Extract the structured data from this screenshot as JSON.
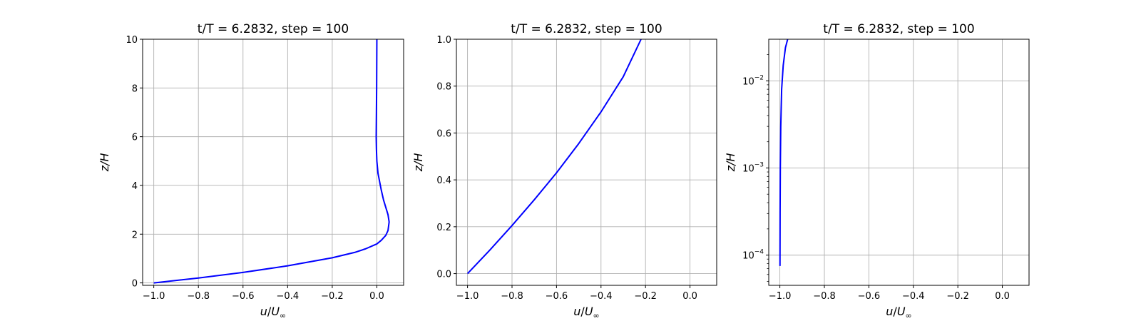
{
  "chart_data": [
    {
      "type": "line",
      "title": "t/T = 6.2832, step = 100",
      "xlabel": "u/U∞",
      "ylabel": "z/H",
      "xlim": [
        -1.05,
        0.12
      ],
      "ylim": [
        -0.1,
        10
      ],
      "yscale": "linear",
      "xticks": [
        -1.0,
        -0.8,
        -0.6,
        -0.4,
        -0.2,
        0.0
      ],
      "xtick_labels": [
        "−1.0",
        "−0.8",
        "−0.6",
        "−0.4",
        "−0.2",
        "0.0"
      ],
      "yticks": [
        0,
        2,
        4,
        6,
        8,
        10
      ],
      "ytick_labels": [
        "0",
        "2",
        "4",
        "6",
        "8",
        "10"
      ],
      "grid": true,
      "legend": "none",
      "series": [
        {
          "color": "#0000ff",
          "x": [
            -1.0,
            -0.8,
            -0.6,
            -0.4,
            -0.2,
            -0.1,
            -0.05,
            0.0,
            0.02,
            0.04,
            0.05,
            0.055,
            0.05,
            0.04,
            0.03,
            0.02,
            0.005,
            0.0,
            -0.002,
            -0.003,
            -0.002,
            -0.001,
            0.0
          ],
          "y": [
            0.0,
            0.2,
            0.43,
            0.7,
            1.03,
            1.25,
            1.4,
            1.6,
            1.75,
            1.95,
            2.15,
            2.5,
            2.8,
            3.1,
            3.4,
            3.8,
            4.5,
            5.0,
            5.5,
            6.0,
            7.0,
            8.0,
            10.0
          ]
        }
      ]
    },
    {
      "type": "line",
      "title": "t/T = 6.2832, step = 100",
      "xlabel": "u/U∞",
      "ylabel": "z/H",
      "xlim": [
        -1.05,
        0.12
      ],
      "ylim": [
        -0.05,
        1.0
      ],
      "yscale": "linear",
      "xticks": [
        -1.0,
        -0.8,
        -0.6,
        -0.4,
        -0.2,
        0.0
      ],
      "xtick_labels": [
        "−1.0",
        "−0.8",
        "−0.6",
        "−0.4",
        "−0.2",
        "0.0"
      ],
      "yticks": [
        0.0,
        0.2,
        0.4,
        0.6,
        0.8,
        1.0
      ],
      "ytick_labels": [
        "0.0",
        "0.2",
        "0.4",
        "0.6",
        "0.8",
        "1.0"
      ],
      "grid": true,
      "legend": "none",
      "series": [
        {
          "color": "#0000ff",
          "x": [
            -1.0,
            -0.9,
            -0.8,
            -0.7,
            -0.6,
            -0.5,
            -0.4,
            -0.3,
            -0.22
          ],
          "y": [
            0.0,
            0.1,
            0.205,
            0.315,
            0.43,
            0.555,
            0.69,
            0.84,
            1.0
          ]
        }
      ]
    },
    {
      "type": "line",
      "title": "t/T = 6.2832, step = 100",
      "xlabel": "u/U∞",
      "ylabel": "z/H",
      "xlim": [
        -1.05,
        0.12
      ],
      "ylim": [
        4.5e-05,
        0.03
      ],
      "yscale": "log",
      "xticks": [
        -1.0,
        -0.8,
        -0.6,
        -0.4,
        -0.2,
        0.0
      ],
      "xtick_labels": [
        "−1.0",
        "−0.8",
        "−0.6",
        "−0.4",
        "−0.2",
        "0.0"
      ],
      "yticks": [
        0.0001,
        0.001,
        0.01
      ],
      "ytick_labels": [
        "10",
        "10",
        "10"
      ],
      "ytick_exponents": [
        "−4",
        "−3",
        "−2"
      ],
      "grid": true,
      "legend": "none",
      "series": [
        {
          "color": "#0000ff",
          "x": [
            -0.9995,
            -0.999,
            -0.998,
            -0.996,
            -0.992,
            -0.985,
            -0.975,
            -0.965
          ],
          "y": [
            7.5e-05,
            0.0003,
            0.001,
            0.003,
            0.008,
            0.015,
            0.024,
            0.03
          ]
        }
      ]
    }
  ]
}
